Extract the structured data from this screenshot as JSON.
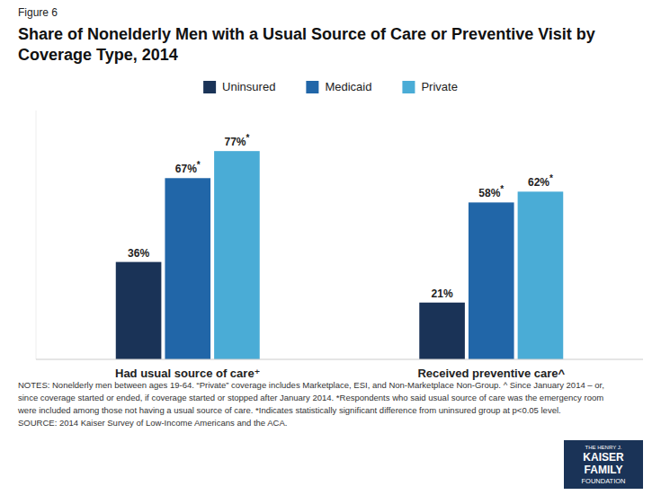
{
  "chart_data": {
    "type": "bar",
    "title": "Share of Nonelderly Men with a Usual Source of Care or Preventive Visit by Coverage Type, 2014",
    "categories": [
      "Had usual source of care⁺",
      "Received preventive care^"
    ],
    "series": [
      {
        "name": "Uninsured",
        "color": "#1a3357",
        "values": [
          36,
          21
        ],
        "value_labels": [
          "36%",
          "21%"
        ]
      },
      {
        "name": "Medicaid",
        "color": "#2166a8",
        "values": [
          67,
          58
        ],
        "value_labels": [
          "67%*",
          "58%*"
        ]
      },
      {
        "name": "Private",
        "color": "#4aacd6",
        "values": [
          77,
          62
        ],
        "value_labels": [
          "77%*",
          "62%*"
        ]
      }
    ],
    "ylim": [
      0,
      92
    ],
    "data_labels": true,
    "legend": "top",
    "grid": false,
    "tick_labels": "x",
    "annotations": [
      "Figure 6",
      "NOTES: Nonelderly men between ages 19-64. “Private” coverage includes Marketplace, ESI, and Non-Marketplace Non-Group.  ^ Since January 2014 – or,",
      "since coverage started or ended, if coverage started or stopped after January 2014. *Respondents who said usual source of care was the emergency room",
      "were included among those not having a usual source of care. *Indicates statistically significant difference from uninsured group at p<0.05 level.",
      "SOURCE: 2014 Kaiser Survey of Low-Income Americans and the ACA.",
      "THE HENRY J.",
      "KAISER",
      "FAMILY",
      "FOUNDATION"
    ]
  }
}
